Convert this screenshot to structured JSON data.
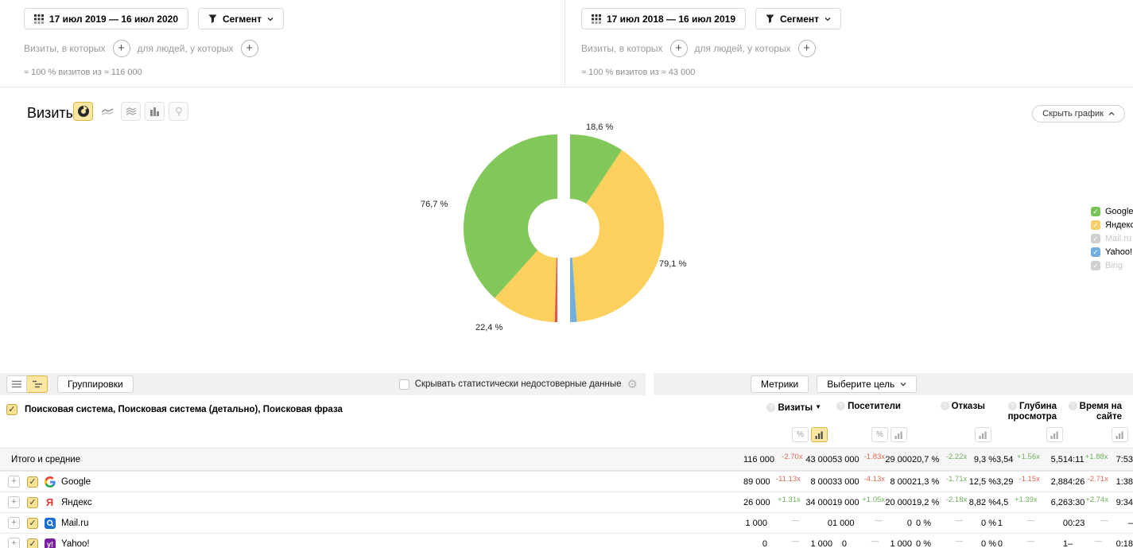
{
  "panels": [
    {
      "date_range": "17 июл 2019 — 16 июл 2020",
      "segment_label": "Сегмент",
      "visits_filter_label": "Визиты, в которых",
      "people_filter_label": "для людей, у которых",
      "summary": "≈ 100 % визитов из ≈ 116 000"
    },
    {
      "date_range": "17 июл 2018 — 16 июл 2019",
      "segment_label": "Сегмент",
      "visits_filter_label": "Визиты, в которых",
      "people_filter_label": "для людей, у которых",
      "summary": "≈ 100 % визитов из ≈ 43 000"
    }
  ],
  "chart_section": {
    "title": "Визиты",
    "hide_chart_label": "Скрыть график",
    "legend": [
      {
        "label": "Google",
        "color": "#77c353",
        "enabled": true
      },
      {
        "label": "Яндекс",
        "color": "#f5d069",
        "enabled": true
      },
      {
        "label": "Mail.ru",
        "color": "#cfcfcf",
        "enabled": false
      },
      {
        "label": "Yahoo!",
        "color": "#74aede",
        "enabled": true
      },
      {
        "label": "Bing",
        "color": "#cfcfcf",
        "enabled": false
      }
    ]
  },
  "chart_data": {
    "type": "pie",
    "variant": "split-donut-comparison",
    "title": "Визиты",
    "units": "%",
    "halves": [
      {
        "period": "17 июл 2019 — 16 июл 2020",
        "side": "left",
        "segments": [
          {
            "label": "Google",
            "value": 76.7,
            "color": "#82c75a"
          },
          {
            "label": "Яндекс",
            "value": 22.4,
            "color": "#fbd05c"
          },
          {
            "label": "Mail.ru",
            "value": 0.9,
            "color": "#e4584c"
          }
        ]
      },
      {
        "period": "17 июл 2018 — 16 июл 2019",
        "side": "right",
        "segments": [
          {
            "label": "Google",
            "value": 18.6,
            "color": "#82c75a"
          },
          {
            "label": "Яндекс",
            "value": 79.1,
            "color": "#fbd05c"
          },
          {
            "label": "Yahoo!",
            "value": 2.3,
            "color": "#74aede"
          }
        ]
      }
    ],
    "callouts": {
      "top": "18,6 %",
      "left": "76,7 %",
      "right": "79,1 %",
      "bottom": "22,4 %"
    }
  },
  "report": {
    "toolbar": {
      "groupings_label": "Группировки",
      "hide_unreliable_label": "Скрывать статистически недостоверные данные",
      "metrics_label": "Метрики",
      "goal_label": "Выберите цель"
    },
    "dimension_header": "Поисковая система, Поисковая система (детально), Поисковая фраза",
    "columns": [
      {
        "label": "Визиты",
        "sorted": true,
        "toggles": [
          {
            "type": "percent",
            "selected": false
          },
          {
            "type": "bars",
            "selected": true
          }
        ]
      },
      {
        "label": "Посетители",
        "sorted": false,
        "toggles": [
          {
            "type": "percent",
            "selected": false
          },
          {
            "type": "bars",
            "selected": false
          }
        ]
      },
      {
        "label": "Отказы",
        "sorted": false,
        "toggles": [
          {
            "type": "bars",
            "selected": false
          }
        ]
      },
      {
        "label": "Глубина просмотра",
        "sorted": false,
        "toggles": [
          {
            "type": "bars",
            "selected": false
          }
        ]
      },
      {
        "label": "Время на сайте",
        "sorted": false,
        "toggles": [
          {
            "type": "bars",
            "selected": false
          }
        ]
      }
    ],
    "totals_row": {
      "label": "Итого и средние",
      "metrics": [
        {
          "a": "116 000",
          "x": "-2.70x",
          "b": "43 000",
          "trend": "neg"
        },
        {
          "a": "53 000",
          "x": "-1.83x",
          "b": "29 000",
          "trend": "neg"
        },
        {
          "a": "20,7 %",
          "x": "-2.22x",
          "b": "9,3 %",
          "trend": "pos"
        },
        {
          "a": "3,54",
          "x": "+1.56x",
          "b": "5,51",
          "trend": "pos"
        },
        {
          "a": "4:11",
          "x": "+1.88x",
          "b": "7:53",
          "trend": "pos"
        }
      ]
    },
    "rows": [
      {
        "name": "Google",
        "favicon": "google",
        "checked": true,
        "metrics": [
          {
            "a": "89 000",
            "x": "-11.13x",
            "b": "8 000",
            "trend": "neg"
          },
          {
            "a": "33 000",
            "x": "-4.13x",
            "b": "8 000",
            "trend": "neg"
          },
          {
            "a": "21,3 %",
            "x": "-1.71x",
            "b": "12,5 %",
            "trend": "pos"
          },
          {
            "a": "3,29",
            "x": "-1.15x",
            "b": "2,88",
            "trend": "neg"
          },
          {
            "a": "4:26",
            "x": "-2.71x",
            "b": "1:38",
            "trend": "neg"
          }
        ]
      },
      {
        "name": "Яндекс",
        "favicon": "yandex",
        "checked": true,
        "metrics": [
          {
            "a": "26 000",
            "x": "+1.31x",
            "b": "34 000",
            "trend": "pos"
          },
          {
            "a": "19 000",
            "x": "+1.05x",
            "b": "20 000",
            "trend": "pos"
          },
          {
            "a": "19,2 %",
            "x": "-2.18x",
            "b": "8,82 %",
            "trend": "pos"
          },
          {
            "a": "4,5",
            "x": "+1.39x",
            "b": "6,26",
            "trend": "pos"
          },
          {
            "a": "3:30",
            "x": "+2.74x",
            "b": "9:34",
            "trend": "pos"
          }
        ]
      },
      {
        "name": "Mail.ru",
        "favicon": "mailru",
        "checked": true,
        "metrics": [
          {
            "a": "1 000",
            "x": "—",
            "b": "0",
            "trend": "none"
          },
          {
            "a": "1 000",
            "x": "—",
            "b": "0",
            "trend": "none"
          },
          {
            "a": "0 %",
            "x": "—",
            "b": "0 %",
            "trend": "none"
          },
          {
            "a": "1",
            "x": "—",
            "b": "0",
            "trend": "none"
          },
          {
            "a": "0:23",
            "x": "—",
            "b": "–",
            "trend": "none"
          }
        ]
      },
      {
        "name": "Yahoo!",
        "favicon": "yahoo",
        "checked": true,
        "metrics": [
          {
            "a": "0",
            "x": "—",
            "b": "1 000",
            "trend": "none"
          },
          {
            "a": "0",
            "x": "—",
            "b": "1 000",
            "trend": "none"
          },
          {
            "a": "0 %",
            "x": "—",
            "b": "0 %",
            "trend": "none"
          },
          {
            "a": "0",
            "x": "—",
            "b": "1",
            "trend": "none"
          },
          {
            "a": "–",
            "x": "—",
            "b": "0:18",
            "trend": "none"
          }
        ]
      }
    ]
  }
}
